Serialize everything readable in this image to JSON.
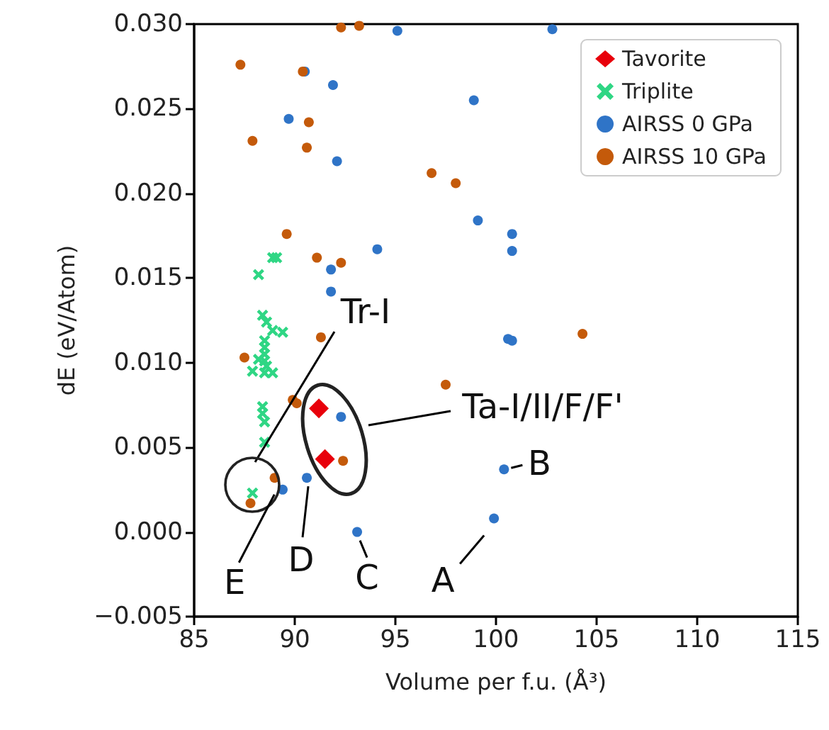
{
  "chart_data": {
    "type": "scatter",
    "xlabel": "Volume per f.u. (Å³)",
    "ylabel": "dE (eV/Atom)",
    "xlim": [
      85,
      115
    ],
    "xticks": [
      85,
      90,
      95,
      100,
      105,
      110,
      115
    ],
    "ylim": [
      -0.005,
      0.03
    ],
    "yticks": [
      {
        "value": -0.005,
        "label": "−0.005"
      },
      {
        "value": 0,
        "label": "0.000"
      },
      {
        "value": 0.005,
        "label": "0.005"
      },
      {
        "value": 0.01,
        "label": "0.010"
      },
      {
        "value": 0.015,
        "label": "0.015"
      },
      {
        "value": 0.02,
        "label": "0.020"
      },
      {
        "value": 0.025,
        "label": "0.025"
      },
      {
        "value": 0.03,
        "label": "0.030"
      }
    ],
    "grid": false,
    "legend": "top right",
    "series": [
      {
        "name": "Tavorite",
        "color": "#e8000b",
        "marker": "diamond",
        "x": [
          91.2,
          91.5
        ],
        "values": [
          0.0073,
          0.0043
        ]
      },
      {
        "name": "Triplite",
        "color": "#2fd684",
        "marker": "cross",
        "x": [
          88.9,
          89.1,
          88.2,
          88.4,
          88.6,
          89.4,
          88.9,
          88.5,
          88.5,
          88.5,
          88.5,
          88.2,
          88.6,
          87.9,
          88.5,
          88.9,
          88.4,
          88.4,
          88.5,
          88.5,
          87.9
        ],
        "values": [
          0.0162,
          0.0162,
          0.0152,
          0.0128,
          0.0124,
          0.0118,
          0.0119,
          0.0113,
          0.0109,
          0.0105,
          0.0101,
          0.0102,
          0.0098,
          0.0095,
          0.0094,
          0.0094,
          0.0074,
          0.007,
          0.0065,
          0.0053,
          0.0023
        ]
      },
      {
        "name": "AIRSS 0 GPa",
        "color": "#2f74c7",
        "marker": "circle",
        "x": [
          95.1,
          102.8,
          90.5,
          91.9,
          98.9,
          89.7,
          92.1,
          99.1,
          100.8,
          100.8,
          94.1,
          91.8,
          91.8,
          100.6,
          100.8,
          92.3,
          90.6,
          89.4,
          93.1,
          100.4,
          99.9
        ],
        "values": [
          0.0296,
          0.0297,
          0.0272,
          0.0264,
          0.0255,
          0.0244,
          0.0219,
          0.0184,
          0.0176,
          0.0166,
          0.0167,
          0.0155,
          0.0142,
          0.0114,
          0.0113,
          0.0068,
          0.0032,
          0.0025,
          0.0,
          0.0037,
          0.0008
        ]
      },
      {
        "name": "AIRSS 10 GPa",
        "color": "#c45a0a",
        "marker": "circle",
        "x": [
          92.3,
          93.2,
          87.3,
          90.4,
          90.7,
          87.9,
          90.6,
          96.8,
          98.0,
          89.6,
          91.1,
          92.3,
          104.3,
          91.3,
          87.5,
          89.9,
          90.1,
          97.5,
          92.4,
          89.0,
          87.8
        ],
        "values": [
          0.0298,
          0.0299,
          0.0276,
          0.0272,
          0.0242,
          0.0231,
          0.0227,
          0.0212,
          0.0206,
          0.0176,
          0.0162,
          0.0159,
          0.0117,
          0.0115,
          0.0103,
          0.0078,
          0.0076,
          0.0087,
          0.0042,
          0.0032,
          0.0017
        ]
      }
    ],
    "annotations": [
      "Tr-I",
      "Ta-I/II/F/F'",
      {
        "text": "A",
        "x": 99.9,
        "y": 0.0008
      },
      {
        "text": "B",
        "x": 100.4,
        "y": 0.0037
      },
      {
        "text": "C",
        "x": 93.1,
        "y": 0.0
      },
      {
        "text": "D",
        "x": 90.6,
        "y": 0.0032
      },
      {
        "text": "E",
        "x": 89.2,
        "y": 0.0028
      }
    ]
  }
}
